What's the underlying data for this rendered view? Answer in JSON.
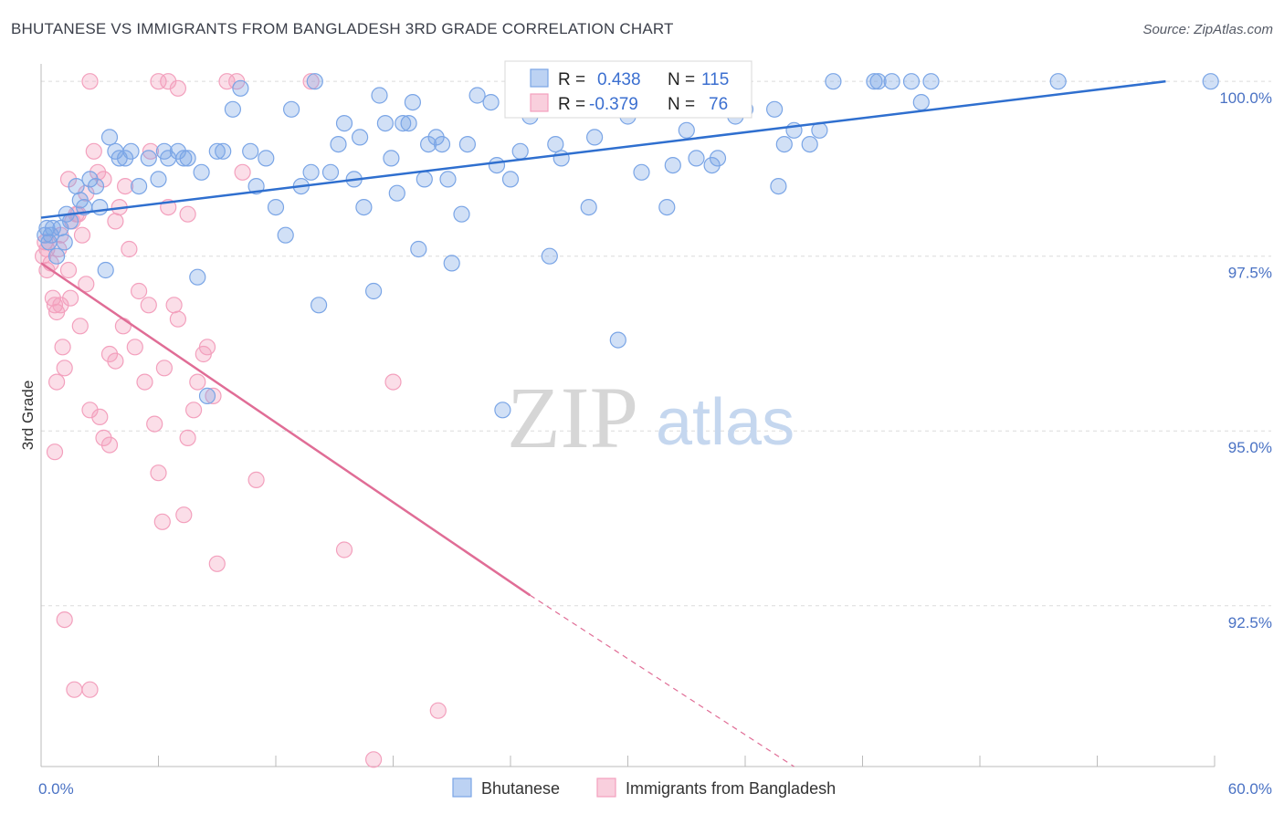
{
  "header": {
    "title": "BHUTANESE VS IMMIGRANTS FROM BANGLADESH 3RD GRADE CORRELATION CHART",
    "source": "Source: ZipAtlas.com"
  },
  "watermark": {
    "zip": "ZIP",
    "atlas": "atlas"
  },
  "chart_data": {
    "type": "scatter",
    "title": "BHUTANESE VS IMMIGRANTS FROM BANGLADESH 3RD GRADE CORRELATION CHART",
    "xlabel": "",
    "ylabel": "3rd Grade",
    "xlim": [
      0,
      60
    ],
    "ylim": [
      90.2,
      100.25
    ],
    "x_tick_labels": [
      "0.0%",
      "60.0%"
    ],
    "y_ticks": [
      92.5,
      95.0,
      97.5,
      100.0
    ],
    "y_tick_labels": [
      "92.5%",
      "95.0%",
      "97.5%",
      "100.0%"
    ],
    "grid": true,
    "legend_position": "bottom-center",
    "stats_box": {
      "rows": [
        {
          "r_label": "R =",
          "r_value": "0.438",
          "n_label": "N =",
          "n_value": "115"
        },
        {
          "r_label": "R =",
          "r_value": "-0.379",
          "n_label": "N =",
          "n_value": "76"
        }
      ]
    },
    "series": [
      {
        "name": "Bhutanese",
        "color": "#7aa5e6",
        "line_color": "#2f6fcf",
        "trend": {
          "x": [
            0,
            57.5
          ],
          "y": [
            98.05,
            100.0
          ]
        },
        "points": [
          [
            0.2,
            97.8
          ],
          [
            0.3,
            97.9
          ],
          [
            0.4,
            97.7
          ],
          [
            0.5,
            97.8
          ],
          [
            0.6,
            97.9
          ],
          [
            0.8,
            97.5
          ],
          [
            1.0,
            97.9
          ],
          [
            1.2,
            97.7
          ],
          [
            1.3,
            98.1
          ],
          [
            1.5,
            98.0
          ],
          [
            1.8,
            98.5
          ],
          [
            2.0,
            98.3
          ],
          [
            2.2,
            98.2
          ],
          [
            2.5,
            98.6
          ],
          [
            2.8,
            98.5
          ],
          [
            3.0,
            98.2
          ],
          [
            3.3,
            97.3
          ],
          [
            3.5,
            99.2
          ],
          [
            3.8,
            99.0
          ],
          [
            4.0,
            98.9
          ],
          [
            4.3,
            98.9
          ],
          [
            4.6,
            99.0
          ],
          [
            5.0,
            98.5
          ],
          [
            5.5,
            98.9
          ],
          [
            6.0,
            98.6
          ],
          [
            6.3,
            99.0
          ],
          [
            6.5,
            98.9
          ],
          [
            7.0,
            99.0
          ],
          [
            7.3,
            98.9
          ],
          [
            7.5,
            98.9
          ],
          [
            8.0,
            97.2
          ],
          [
            8.2,
            98.7
          ],
          [
            8.5,
            95.5
          ],
          [
            9.0,
            99.0
          ],
          [
            9.3,
            99.0
          ],
          [
            9.8,
            99.6
          ],
          [
            10.2,
            99.9
          ],
          [
            10.7,
            99.0
          ],
          [
            11.0,
            98.5
          ],
          [
            11.5,
            98.9
          ],
          [
            12.0,
            98.2
          ],
          [
            12.5,
            97.8
          ],
          [
            12.8,
            99.6
          ],
          [
            13.3,
            98.5
          ],
          [
            13.8,
            98.7
          ],
          [
            14.0,
            100.0
          ],
          [
            14.2,
            96.8
          ],
          [
            14.8,
            98.7
          ],
          [
            15.2,
            99.1
          ],
          [
            15.5,
            99.4
          ],
          [
            16.0,
            98.6
          ],
          [
            16.3,
            99.2
          ],
          [
            16.5,
            98.2
          ],
          [
            17.0,
            97.0
          ],
          [
            17.3,
            99.8
          ],
          [
            17.6,
            99.4
          ],
          [
            17.9,
            98.9
          ],
          [
            18.2,
            98.4
          ],
          [
            18.5,
            99.4
          ],
          [
            18.8,
            99.4
          ],
          [
            19.0,
            99.7
          ],
          [
            19.3,
            97.6
          ],
          [
            19.6,
            98.6
          ],
          [
            19.8,
            99.1
          ],
          [
            20.2,
            99.2
          ],
          [
            20.5,
            99.1
          ],
          [
            20.8,
            98.6
          ],
          [
            21.0,
            97.4
          ],
          [
            21.5,
            98.1
          ],
          [
            21.8,
            99.1
          ],
          [
            22.3,
            99.8
          ],
          [
            23.0,
            99.7
          ],
          [
            23.3,
            98.8
          ],
          [
            23.6,
            95.3
          ],
          [
            24.0,
            98.6
          ],
          [
            24.5,
            99.0
          ],
          [
            25.0,
            99.5
          ],
          [
            25.3,
            99.8
          ],
          [
            25.6,
            99.7
          ],
          [
            26.0,
            97.5
          ],
          [
            26.3,
            99.1
          ],
          [
            26.6,
            98.9
          ],
          [
            27.0,
            99.7
          ],
          [
            28.0,
            98.2
          ],
          [
            28.3,
            99.2
          ],
          [
            28.8,
            99.6
          ],
          [
            29.5,
            96.3
          ],
          [
            30.0,
            99.5
          ],
          [
            30.7,
            98.7
          ],
          [
            31.1,
            99.8
          ],
          [
            32.0,
            98.2
          ],
          [
            32.3,
            98.8
          ],
          [
            32.8,
            99.8
          ],
          [
            33.0,
            99.3
          ],
          [
            33.5,
            98.9
          ],
          [
            34.3,
            98.8
          ],
          [
            34.6,
            98.9
          ],
          [
            35.0,
            99.6
          ],
          [
            35.5,
            99.5
          ],
          [
            36.0,
            99.6
          ],
          [
            37.5,
            99.6
          ],
          [
            37.7,
            98.5
          ],
          [
            38.0,
            99.1
          ],
          [
            38.5,
            99.3
          ],
          [
            39.3,
            99.1
          ],
          [
            39.8,
            99.3
          ],
          [
            40.5,
            100.0
          ],
          [
            42.6,
            100.0
          ],
          [
            42.8,
            100.0
          ],
          [
            43.5,
            100.0
          ],
          [
            44.5,
            100.0
          ],
          [
            45.0,
            99.7
          ],
          [
            45.5,
            100.0
          ],
          [
            52.0,
            100.0
          ],
          [
            59.8,
            100.0
          ]
        ]
      },
      {
        "name": "Immigrants from Bangladesh",
        "color": "#f3a0bd",
        "line_color": "#e06d96",
        "trend": {
          "x": [
            0,
            25.0
          ],
          "y": [
            97.4,
            92.65
          ]
        },
        "trend_extension": {
          "x": [
            25.0,
            38.5
          ],
          "y": [
            92.65,
            90.2
          ]
        },
        "points": [
          [
            0.1,
            97.5
          ],
          [
            0.2,
            97.7
          ],
          [
            0.3,
            97.6
          ],
          [
            0.3,
            97.3
          ],
          [
            0.5,
            97.4
          ],
          [
            0.6,
            96.9
          ],
          [
            0.7,
            96.8
          ],
          [
            0.8,
            96.7
          ],
          [
            0.9,
            97.6
          ],
          [
            1.0,
            97.8
          ],
          [
            1.1,
            96.2
          ],
          [
            1.2,
            95.9
          ],
          [
            1.4,
            97.3
          ],
          [
            1.6,
            98.0
          ],
          [
            1.8,
            98.1
          ],
          [
            2.0,
            96.5
          ],
          [
            2.1,
            97.8
          ],
          [
            2.3,
            97.1
          ],
          [
            2.5,
            95.3
          ],
          [
            2.7,
            99.0
          ],
          [
            2.9,
            98.7
          ],
          [
            3.2,
            98.6
          ],
          [
            3.5,
            96.1
          ],
          [
            3.8,
            96.0
          ],
          [
            4.0,
            98.2
          ],
          [
            4.3,
            98.5
          ],
          [
            4.5,
            97.6
          ],
          [
            4.8,
            96.2
          ],
          [
            5.0,
            97.0
          ],
          [
            5.3,
            95.7
          ],
          [
            5.5,
            96.8
          ],
          [
            5.8,
            95.1
          ],
          [
            6.0,
            94.4
          ],
          [
            6.2,
            93.7
          ],
          [
            6.5,
            98.2
          ],
          [
            6.8,
            96.8
          ],
          [
            7.0,
            96.6
          ],
          [
            7.3,
            93.8
          ],
          [
            7.5,
            94.9
          ],
          [
            7.8,
            95.3
          ],
          [
            8.0,
            95.7
          ],
          [
            8.3,
            96.1
          ],
          [
            8.5,
            96.2
          ],
          [
            8.8,
            95.5
          ],
          [
            9.0,
            93.1
          ],
          [
            10.0,
            100.0
          ],
          [
            10.3,
            98.7
          ],
          [
            11.0,
            94.3
          ],
          [
            13.8,
            100.0
          ],
          [
            15.5,
            93.3
          ],
          [
            17.0,
            90.3
          ],
          [
            18.0,
            95.7
          ],
          [
            20.3,
            91.0
          ],
          [
            6.0,
            100.0
          ],
          [
            6.5,
            100.0
          ],
          [
            7.0,
            99.9
          ],
          [
            9.5,
            100.0
          ],
          [
            2.5,
            100.0
          ],
          [
            1.0,
            96.8
          ],
          [
            1.5,
            96.9
          ],
          [
            0.8,
            95.7
          ],
          [
            0.7,
            94.7
          ],
          [
            1.2,
            92.3
          ],
          [
            1.7,
            91.3
          ],
          [
            2.5,
            91.3
          ],
          [
            3.0,
            95.2
          ],
          [
            3.2,
            94.9
          ],
          [
            3.5,
            94.8
          ],
          [
            3.8,
            98.0
          ],
          [
            2.3,
            98.4
          ],
          [
            1.9,
            98.1
          ],
          [
            1.4,
            98.6
          ],
          [
            5.6,
            99.0
          ],
          [
            7.5,
            98.1
          ],
          [
            6.3,
            95.9
          ],
          [
            4.2,
            96.5
          ]
        ]
      }
    ]
  }
}
